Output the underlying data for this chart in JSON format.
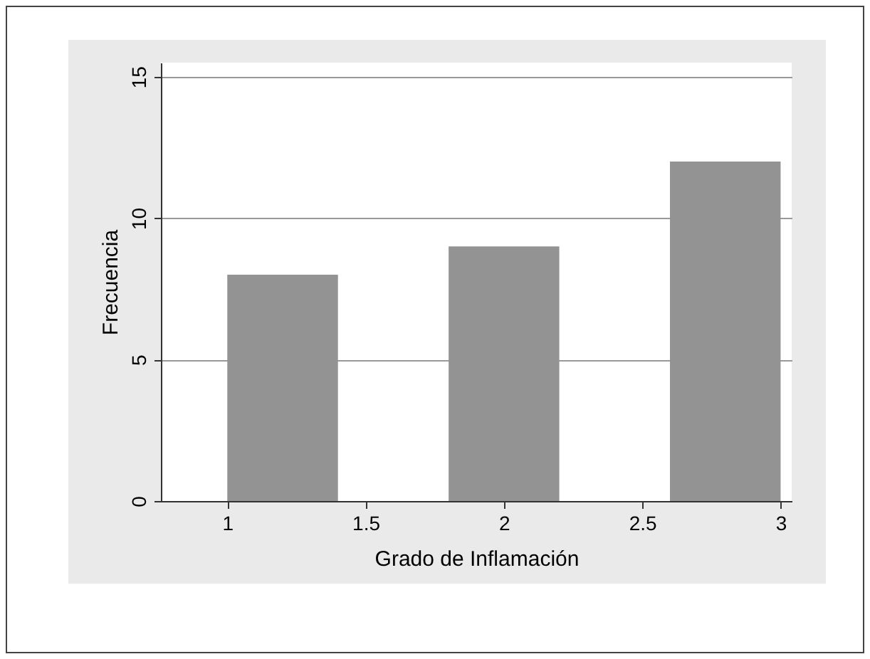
{
  "chart_data": {
    "type": "histogram",
    "xlabel": "Grado de Inflamación",
    "ylabel": "Frecuencia",
    "bins": [
      1,
      1.4,
      1.8,
      2.2,
      2.6,
      3.0
    ],
    "values": [
      8,
      0,
      9,
      0,
      12
    ],
    "color": "#939393",
    "xlim": [
      0.76,
      3.04
    ],
    "xticks": [
      1,
      1.5,
      2,
      2.5,
      3
    ],
    "ylim": [
      0,
      15.5
    ],
    "yticks": [
      0,
      5,
      10,
      15
    ],
    "grid": "y"
  }
}
